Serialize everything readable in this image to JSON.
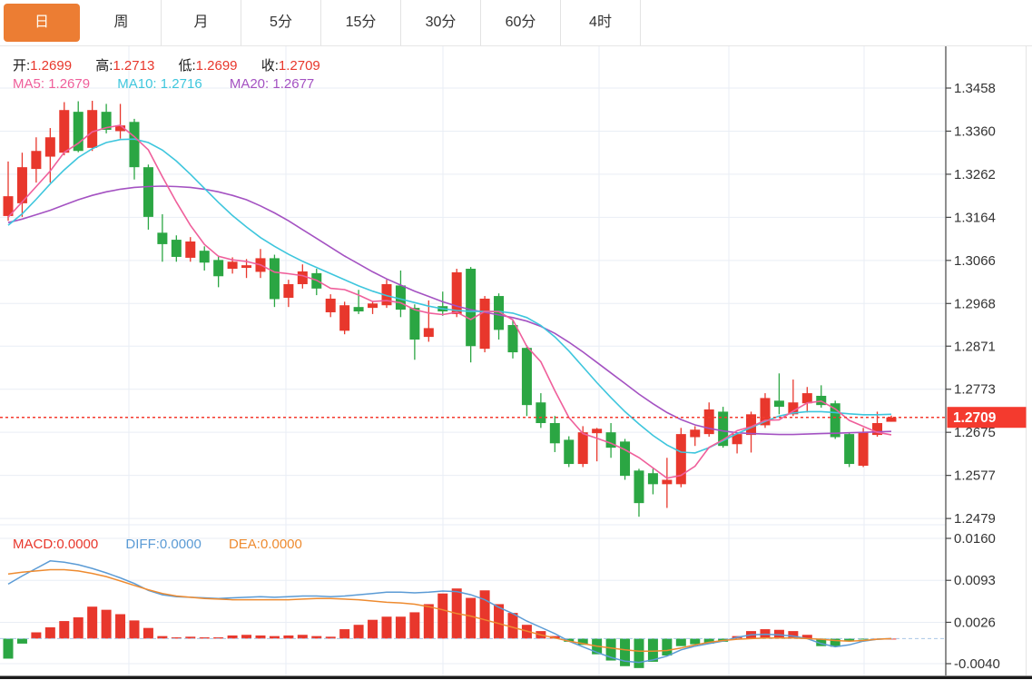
{
  "tabs": {
    "items": [
      {
        "id": "day",
        "label": "日",
        "active": true
      },
      {
        "id": "week",
        "label": "周",
        "active": false
      },
      {
        "id": "month",
        "label": "月",
        "active": false
      },
      {
        "id": "5min",
        "label": "5分",
        "active": false
      },
      {
        "id": "15min",
        "label": "15分",
        "active": false
      },
      {
        "id": "30min",
        "label": "30分",
        "active": false
      },
      {
        "id": "60min",
        "label": "60分",
        "active": false
      },
      {
        "id": "4hour",
        "label": "4时",
        "active": false
      }
    ]
  },
  "info": {
    "open_label": "开:",
    "open": "1.2699",
    "high_label": "高:",
    "high": "1.2713",
    "low_label": "低:",
    "low": "1.2699",
    "close_label": "收:",
    "close": "1.2709"
  },
  "ma_info": {
    "ma5_label": "MA5:",
    "ma5": "1.2679",
    "ma10_label": "MA10:",
    "ma10": "1.2716",
    "ma20_label": "MA20:",
    "ma20": "1.2677"
  },
  "macd_info": {
    "macd_label": "MACD:",
    "macd": "0.0000",
    "diff_label": "DIFF:",
    "diff": "0.0000",
    "dea_label": "DEA:",
    "dea": "0.0000"
  },
  "last_price_label": "1.2709",
  "last_price": 1.2709,
  "colors": {
    "up": "#e8372c",
    "down": "#2ba643",
    "ma5": "#ef5f9b",
    "ma10": "#3ec6dd",
    "ma20": "#a452c2",
    "diff": "#5b9bd5",
    "dea": "#ee8b30",
    "tab_orange": "#ec7d33",
    "axis_text": "#333333",
    "grid": "#e9eef5",
    "price_line": "#f43a2e",
    "zero_dash": "#a9c7e6",
    "badge_text": "#ffffff",
    "bottom_bar": "#1b1b1b"
  },
  "chart_data": {
    "type": "candlestick",
    "legend_position": "top-left-overlay",
    "grid": true,
    "panes": [
      {
        "name": "price",
        "axis_ticks": [
          "1.3458",
          "1.3360",
          "1.3262",
          "1.3164",
          "1.3066",
          "1.2968",
          "1.2871",
          "1.2773",
          "1.2675",
          "1.2577",
          "1.2479"
        ],
        "ylim": [
          1.243,
          1.351
        ],
        "ohlc_format": [
          "open",
          "close",
          "high",
          "low"
        ],
        "candles": [
          [
            1.3167,
            1.3212,
            1.3291,
            1.3156
          ],
          [
            1.3196,
            1.3278,
            1.3311,
            1.3165
          ],
          [
            1.3274,
            1.3315,
            1.3346,
            1.3243
          ],
          [
            1.3302,
            1.3346,
            1.3367,
            1.3243
          ],
          [
            1.3311,
            1.3408,
            1.3426,
            1.3305
          ],
          [
            1.3404,
            1.3315,
            1.3428,
            1.3312
          ],
          [
            1.3322,
            1.3408,
            1.3429,
            1.3315
          ],
          [
            1.3404,
            1.3363,
            1.3422,
            1.3355
          ],
          [
            1.336,
            1.3373,
            1.3422,
            1.3343
          ],
          [
            1.3381,
            1.3278,
            1.3388,
            1.325
          ],
          [
            1.3278,
            1.3165,
            1.3284,
            1.3136
          ],
          [
            1.3129,
            1.3103,
            1.3171,
            1.3063
          ],
          [
            1.3113,
            1.3074,
            1.3123,
            1.3063
          ],
          [
            1.3072,
            1.3109,
            1.3119,
            1.3063
          ],
          [
            1.3088,
            1.3061,
            1.3098,
            1.3043
          ],
          [
            1.3067,
            1.303,
            1.3077,
            1.3005
          ],
          [
            1.3047,
            1.3063,
            1.3073,
            1.3036
          ],
          [
            1.3049,
            1.3055,
            1.3069,
            1.3026
          ],
          [
            1.304,
            1.3071,
            1.3092,
            1.3026
          ],
          [
            1.3071,
            1.2978,
            1.3079,
            1.296
          ],
          [
            1.2981,
            1.3012,
            1.3022,
            1.296
          ],
          [
            1.3012,
            1.3041,
            1.3057,
            1.3002
          ],
          [
            1.3037,
            1.3002,
            1.3047,
            1.2987
          ],
          [
            1.2948,
            1.2979,
            1.2989,
            1.2937
          ],
          [
            1.2906,
            1.2964,
            1.2972,
            1.2898
          ],
          [
            1.296,
            1.295,
            1.2999,
            1.2944
          ],
          [
            1.2958,
            1.2968,
            1.2974,
            1.2944
          ],
          [
            1.2964,
            1.3012,
            1.3022,
            1.2958
          ],
          [
            1.3009,
            1.2954,
            1.3043,
            1.2937
          ],
          [
            1.2958,
            1.2886,
            1.2966,
            1.284
          ],
          [
            1.2892,
            1.2912,
            1.2975,
            1.2881
          ],
          [
            1.2962,
            1.295,
            1.2995,
            1.294
          ],
          [
            1.2944,
            1.3039,
            1.3047,
            1.2937
          ],
          [
            1.3047,
            1.2871,
            1.3051,
            1.2834
          ],
          [
            1.2865,
            1.2979,
            1.2985,
            1.2857
          ],
          [
            1.2985,
            1.2908,
            1.2991,
            1.2886
          ],
          [
            1.2919,
            1.2857,
            1.2929,
            1.2843
          ],
          [
            1.2867,
            1.2737,
            1.2873,
            1.2712
          ],
          [
            1.2743,
            1.2696,
            1.2764,
            1.2685
          ],
          [
            1.2696,
            1.265,
            1.2712,
            1.263
          ],
          [
            1.2658,
            1.2603,
            1.2666,
            1.2596
          ],
          [
            1.2603,
            1.2675,
            1.2689,
            1.2596
          ],
          [
            1.2673,
            1.2683,
            1.2685,
            1.2609
          ],
          [
            1.2675,
            1.264,
            1.2696,
            1.2617
          ],
          [
            1.2654,
            1.2576,
            1.266,
            1.2567
          ],
          [
            1.2588,
            1.2514,
            1.2592,
            1.2483
          ],
          [
            1.2582,
            1.2557,
            1.2592,
            1.2534
          ],
          [
            1.2557,
            1.2567,
            1.2617,
            1.2503
          ],
          [
            1.2557,
            1.2671,
            1.2685,
            1.255
          ],
          [
            1.2664,
            1.2681,
            1.2689,
            1.2644
          ],
          [
            1.2671,
            1.2727,
            1.2743,
            1.2665
          ],
          [
            1.2722,
            1.2644,
            1.2733,
            1.264
          ],
          [
            1.2648,
            1.2671,
            1.2675,
            1.2627
          ],
          [
            1.2669,
            1.2716,
            1.2722,
            1.2629
          ],
          [
            1.2691,
            1.2753,
            1.2764,
            1.2685
          ],
          [
            1.2747,
            1.2733,
            1.2809,
            1.2716
          ],
          [
            1.2716,
            1.2743,
            1.2795,
            1.2712
          ],
          [
            1.2741,
            1.2764,
            1.2778,
            1.272
          ],
          [
            1.2758,
            1.2737,
            1.2782,
            1.2731
          ],
          [
            1.2741,
            1.2664,
            1.2747,
            1.266
          ],
          [
            1.2671,
            1.2603,
            1.2675,
            1.2596
          ],
          [
            1.2599,
            1.2675,
            1.2685,
            1.2596
          ],
          [
            1.2669,
            1.2696,
            1.2722,
            1.2665
          ],
          [
            1.2699,
            1.2709,
            1.2713,
            1.2699
          ]
        ],
        "ma5_seed": [
          1.3105,
          1.314,
          1.317,
          1.3195
        ],
        "ma10": [
          1.3146,
          1.3172,
          1.3205,
          1.324,
          1.3272,
          1.33,
          1.332,
          1.3334,
          1.3341,
          1.3342,
          1.3334,
          1.3317,
          1.3292,
          1.3262,
          1.323,
          1.3198,
          1.3168,
          1.3142,
          1.3118,
          1.3098,
          1.308,
          1.3064,
          1.305,
          1.3036,
          1.3022,
          1.3008,
          1.2996,
          1.2986,
          1.2978,
          1.297,
          1.2962,
          1.2956,
          1.2952,
          1.295,
          1.295,
          1.295,
          1.2946,
          1.2936,
          1.2918,
          1.2892,
          1.286,
          1.2824,
          1.2788,
          1.2754,
          1.2722,
          1.2694,
          1.2668,
          1.2646,
          1.263,
          1.2628,
          1.264,
          1.2656,
          1.2672,
          1.2686,
          1.27,
          1.2712,
          1.2719,
          1.2722,
          1.2722,
          1.272,
          1.2717,
          1.2715,
          1.2715,
          1.2716
        ],
        "ma20": [
          1.3152,
          1.316,
          1.317,
          1.318,
          1.3192,
          1.3204,
          1.3214,
          1.3222,
          1.3228,
          1.3232,
          1.3234,
          1.3235,
          1.3234,
          1.3232,
          1.3228,
          1.3222,
          1.3214,
          1.3204,
          1.319,
          1.3174,
          1.3156,
          1.3136,
          1.3116,
          1.3096,
          1.3076,
          1.3058,
          1.304,
          1.3024,
          1.301,
          1.2996,
          1.2984,
          1.2972,
          1.2962,
          1.2954,
          1.2948,
          1.2942,
          1.2936,
          1.2928,
          1.2916,
          1.29,
          1.288,
          1.2858,
          1.2834,
          1.281,
          1.2786,
          1.2762,
          1.274,
          1.272,
          1.2704,
          1.2692,
          1.2684,
          1.2678,
          1.2674,
          1.2672,
          1.2671,
          1.267,
          1.267,
          1.2671,
          1.2672,
          1.2673,
          1.2674,
          1.2675,
          1.2676,
          1.2677
        ],
        "last_price": 1.2709
      },
      {
        "name": "macd",
        "axis_ticks": [
          "0.0160",
          "0.0093",
          "0.0026",
          "-0.0040"
        ],
        "ylim": [
          -0.0065,
          0.0182
        ],
        "hist": [
          -0.0032,
          -0.0008,
          0.001,
          0.0018,
          0.0028,
          0.0034,
          0.0051,
          0.0046,
          0.0039,
          0.0029,
          0.0017,
          0.0004,
          0.0002,
          0.0003,
          0.0002,
          0.0002,
          0.0005,
          0.0006,
          0.0005,
          0.0004,
          0.0005,
          0.0006,
          0.0004,
          0.0003,
          0.0015,
          0.0022,
          0.003,
          0.0035,
          0.0035,
          0.0042,
          0.0055,
          0.0072,
          0.008,
          0.0065,
          0.0077,
          0.0055,
          0.0041,
          0.0022,
          0.0012,
          0.0004,
          -0.0005,
          -0.001,
          -0.0025,
          -0.0035,
          -0.0044,
          -0.0047,
          -0.0037,
          -0.0027,
          -0.0012,
          -0.0009,
          -0.0008,
          -0.0005,
          0.0004,
          0.0012,
          0.0015,
          0.0014,
          0.0012,
          0.0006,
          -0.0012,
          -0.0013,
          -0.0003,
          -0.0001,
          0.0,
          0.0
        ],
        "diff": [
          0.0087,
          0.01,
          0.0112,
          0.0124,
          0.0122,
          0.0118,
          0.0112,
          0.0105,
          0.0097,
          0.0088,
          0.0077,
          0.007,
          0.0067,
          0.0066,
          0.0065,
          0.0064,
          0.0065,
          0.0066,
          0.0067,
          0.0066,
          0.0067,
          0.0068,
          0.0068,
          0.0067,
          0.0068,
          0.007,
          0.0072,
          0.0074,
          0.0074,
          0.0073,
          0.0074,
          0.0076,
          0.0075,
          0.007,
          0.0062,
          0.005,
          0.004,
          0.0028,
          0.0018,
          0.0008,
          -0.0004,
          -0.0013,
          -0.0022,
          -0.003,
          -0.0036,
          -0.0038,
          -0.0034,
          -0.0028,
          -0.0018,
          -0.0012,
          -0.0008,
          -0.0004,
          0.0002,
          0.0006,
          0.0007,
          0.0006,
          0.0004,
          0.0,
          -0.0008,
          -0.0013,
          -0.001,
          -0.0004,
          -0.0001,
          0.0
        ],
        "dea": [
          0.0103,
          0.0106,
          0.0108,
          0.011,
          0.011,
          0.0108,
          0.0104,
          0.0099,
          0.0092,
          0.0085,
          0.0078,
          0.0072,
          0.0068,
          0.0066,
          0.0064,
          0.0063,
          0.0062,
          0.0062,
          0.0062,
          0.0062,
          0.0062,
          0.0063,
          0.0064,
          0.0064,
          0.0063,
          0.0062,
          0.006,
          0.0058,
          0.0057,
          0.0055,
          0.0051,
          0.0046,
          0.004,
          0.0036,
          0.003,
          0.0024,
          0.0018,
          0.0012,
          0.0006,
          0.0001,
          -0.0004,
          -0.0008,
          -0.0012,
          -0.0015,
          -0.0018,
          -0.002,
          -0.002,
          -0.0019,
          -0.0015,
          -0.001,
          -0.0006,
          -0.0003,
          -0.0001,
          0.0,
          0.0001,
          0.0001,
          0.0001,
          0.0,
          -0.0001,
          -0.0003,
          -0.0004,
          -0.0003,
          -0.0001,
          0.0
        ]
      }
    ]
  }
}
